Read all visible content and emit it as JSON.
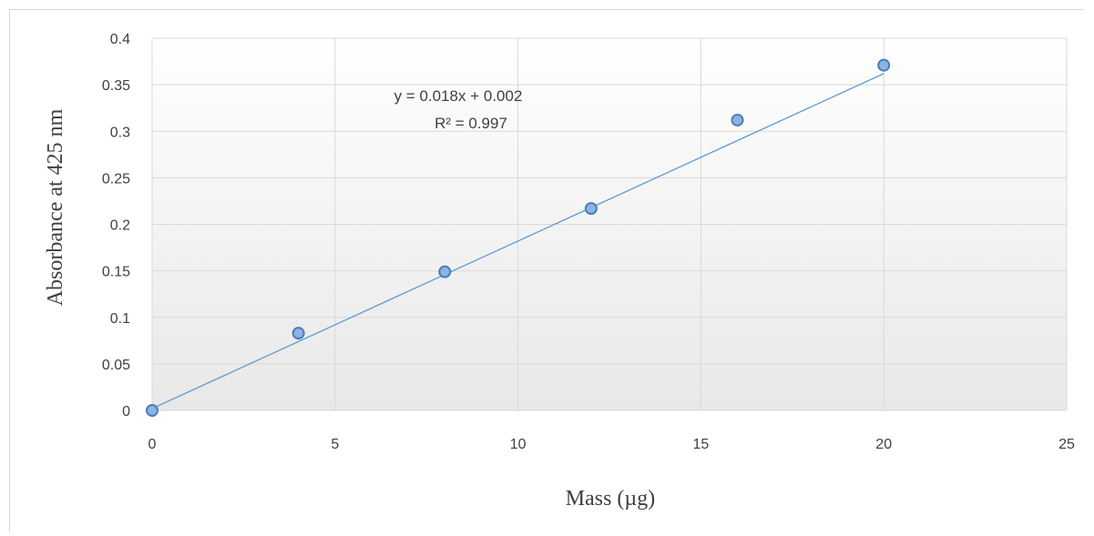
{
  "chart_data": {
    "type": "scatter",
    "title": "",
    "xlabel": "Mass (µg)",
    "ylabel": "Absorbance at 425 nm",
    "xlim": [
      0,
      25
    ],
    "ylim": [
      0,
      0.4
    ],
    "xticks": [
      "0",
      "5",
      "10",
      "15",
      "20",
      "25"
    ],
    "yticks": [
      "0",
      "0.05",
      "0.1",
      "0.15",
      "0.2",
      "0.25",
      "0.3",
      "0.35",
      "0.4"
    ],
    "grid": true,
    "legend": "none",
    "series": [
      {
        "x": [
          0,
          4,
          8,
          12,
          16,
          20
        ],
        "y": [
          0.0,
          0.083,
          0.149,
          0.217,
          0.312,
          0.371
        ],
        "marker_color": "#8db3e2",
        "marker_edge": "#4a7ebb"
      }
    ],
    "trendline": {
      "type": "linear",
      "slope": 0.018,
      "intercept": 0.002,
      "x_range": [
        0,
        20
      ],
      "color": "#5b9bd5",
      "equation": "y = 0.018x + 0.002",
      "r_squared": "R² = 0.997"
    }
  }
}
